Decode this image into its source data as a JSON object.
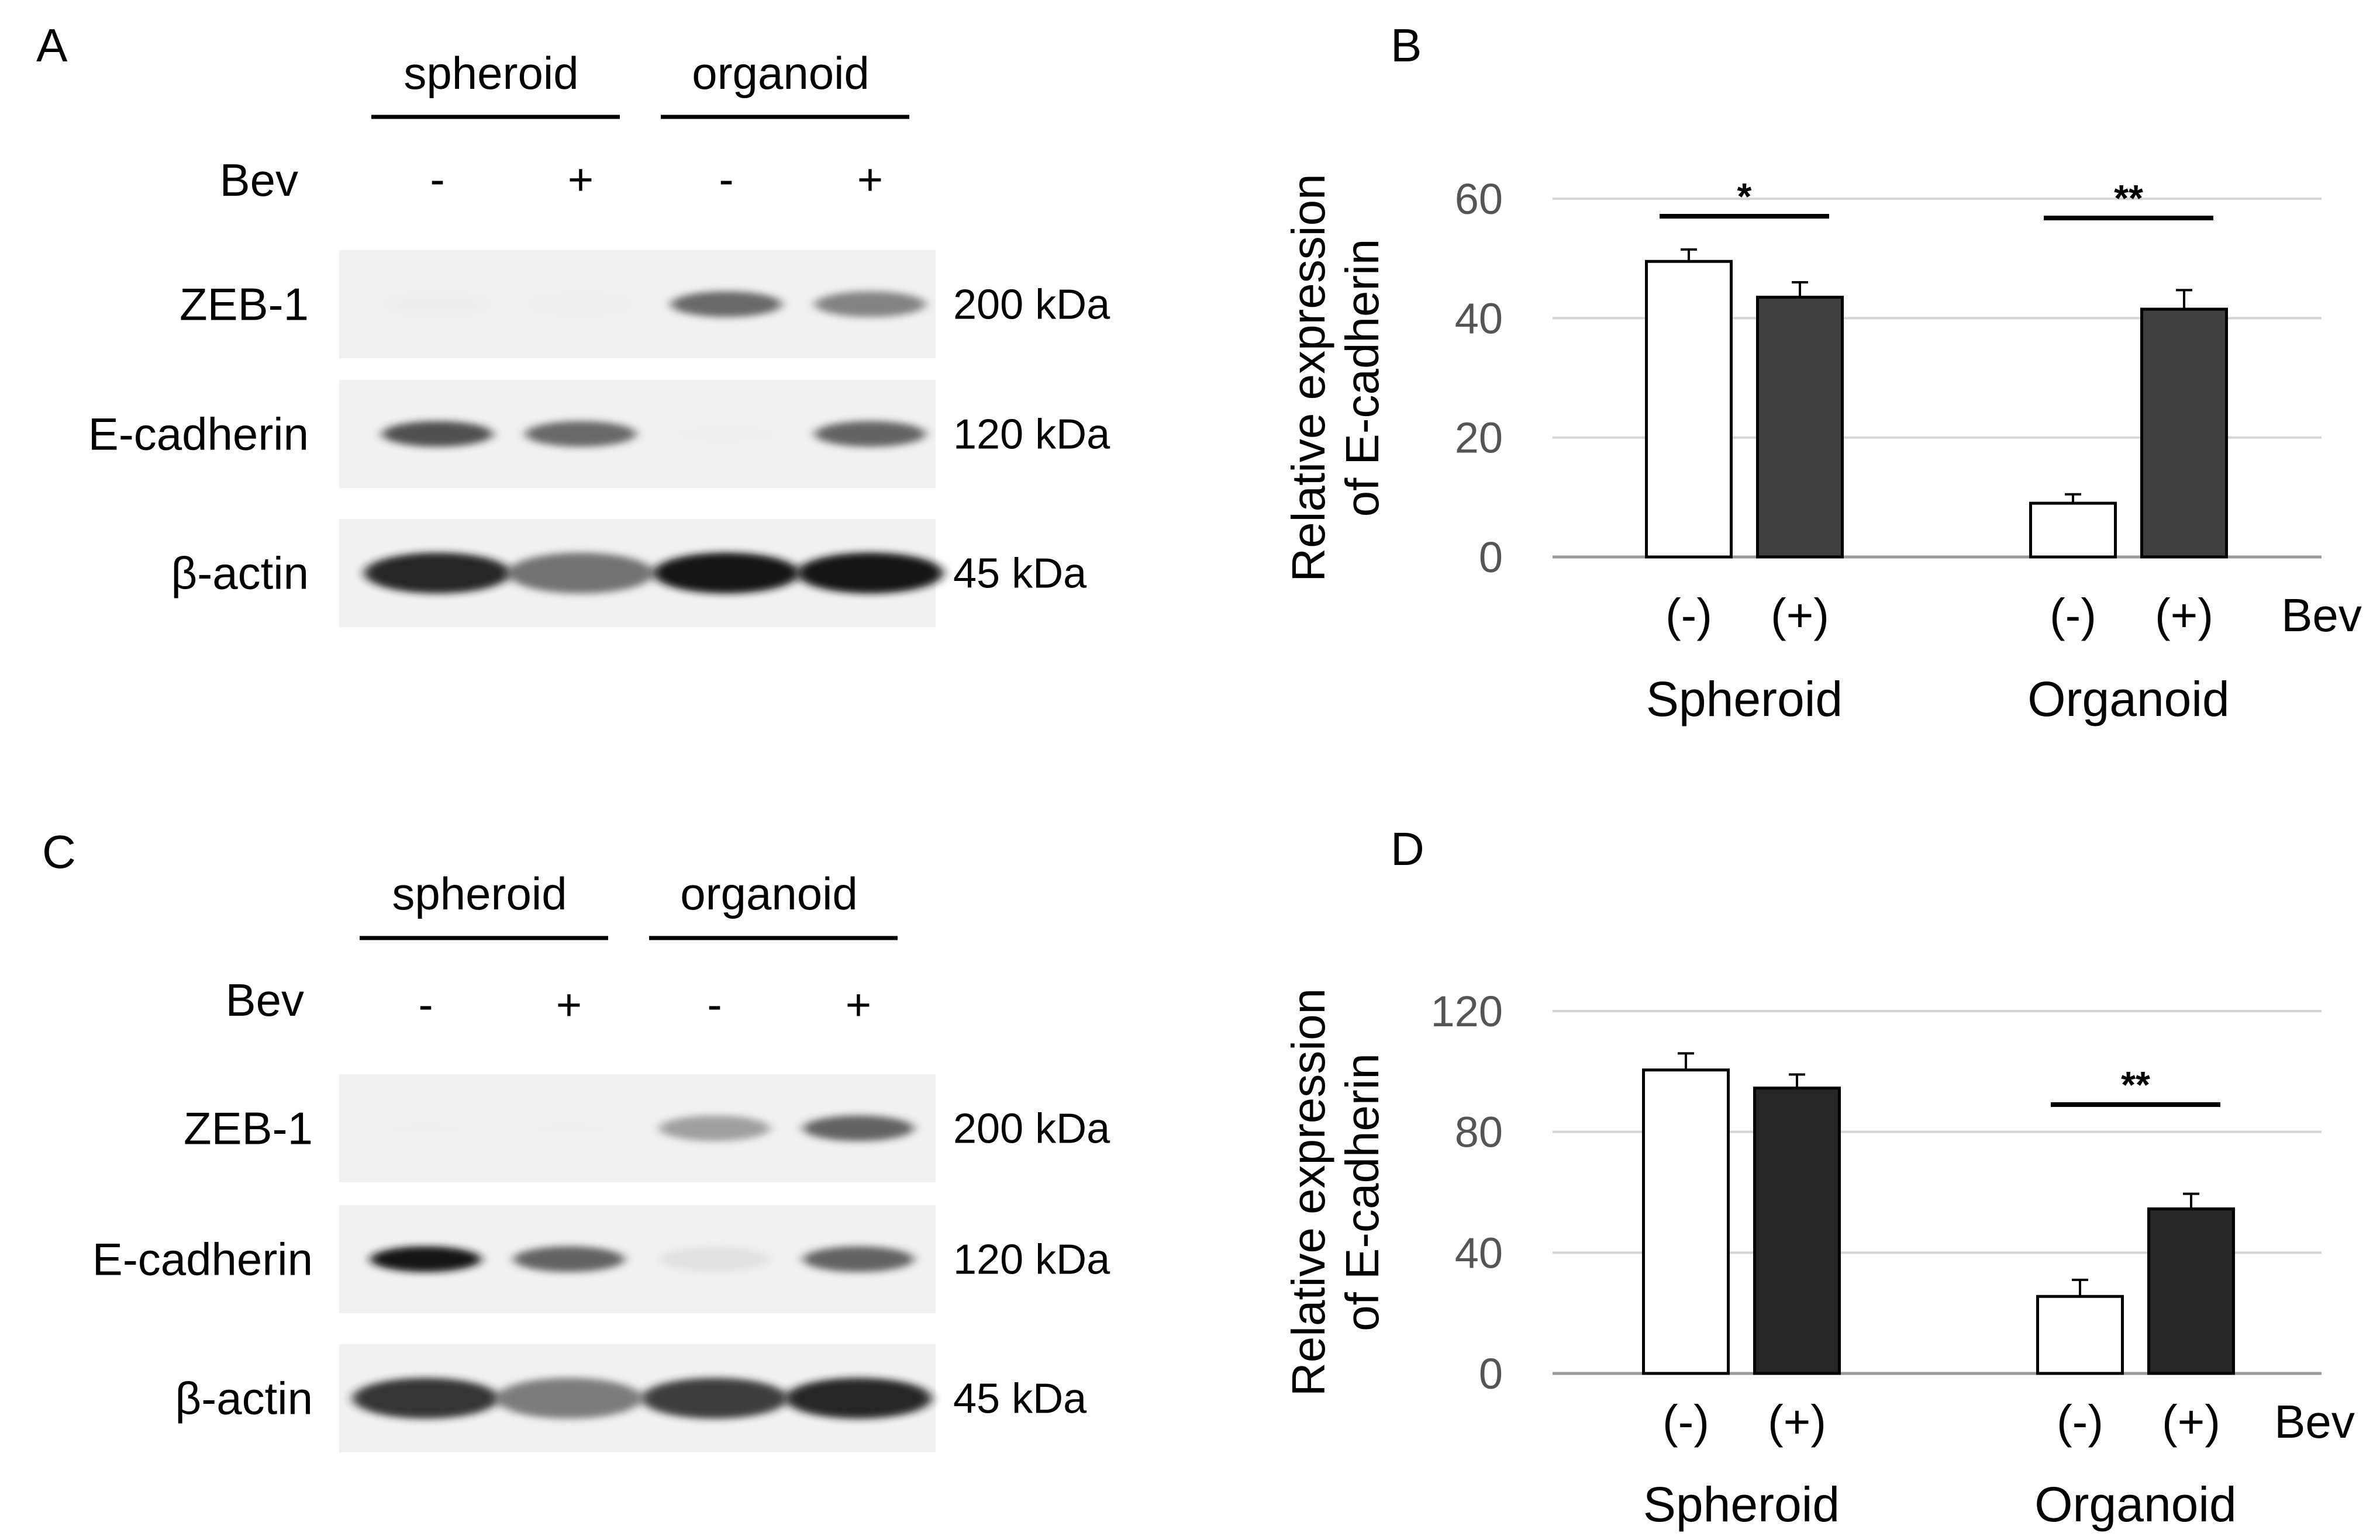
{
  "panels": {
    "A": {
      "letter": "A",
      "groups": [
        "spheroid",
        "organoid"
      ],
      "treatment_label": "Bev",
      "lane_signs": [
        "-",
        "+",
        "-",
        "+"
      ],
      "blots": [
        {
          "label": "ZEB-1",
          "size": "200 kDa",
          "intensity": [
            0.12,
            0.1,
            0.78,
            0.7
          ]
        },
        {
          "label": "E-cadherin",
          "size": "120 kDa",
          "intensity": [
            0.85,
            0.78,
            0.08,
            0.8
          ]
        },
        {
          "label": "β-actin",
          "size": "45 kDa",
          "intensity": [
            0.95,
            0.75,
            1.0,
            1.0
          ]
        }
      ]
    },
    "C": {
      "letter": "C",
      "groups": [
        "spheroid",
        "organoid"
      ],
      "treatment_label": "Bev",
      "lane_signs": [
        "-",
        "+",
        "-",
        "+"
      ],
      "blots": [
        {
          "label": "ZEB-1",
          "size": "200 kDa",
          "intensity": [
            0.04,
            0.04,
            0.6,
            0.8
          ]
        },
        {
          "label": "E-cadherin",
          "size": "120 kDa",
          "intensity": [
            1.0,
            0.8,
            0.25,
            0.8
          ]
        },
        {
          "label": "β-actin",
          "size": "45 kDa",
          "intensity": [
            0.92,
            0.72,
            0.9,
            0.95
          ]
        }
      ]
    }
  },
  "chart_data": [
    {
      "type": "bar",
      "panel": "B",
      "ylabel": [
        "Relative expression",
        "of E-cadherin"
      ],
      "ylim": [
        0,
        60
      ],
      "yticks": [
        0,
        20,
        40,
        60
      ],
      "grid": true,
      "groups": [
        "Spheroid",
        "Organoid"
      ],
      "categories": [
        "(-)",
        "(+)"
      ],
      "treatment_label": "Bev",
      "series": [
        {
          "values": [
            49.5,
            9.0
          ],
          "errors": [
            2.0,
            1.5
          ],
          "color": "#ffffff"
        },
        {
          "values": [
            43.5,
            41.5
          ],
          "errors": [
            2.5,
            3.2
          ],
          "color": "#404040"
        }
      ],
      "significance": [
        "*",
        "**"
      ]
    },
    {
      "type": "bar",
      "panel": "D",
      "ylabel": [
        "Relative expression",
        "of E-cadherin"
      ],
      "ylim": [
        0,
        120
      ],
      "yticks": [
        0,
        40,
        80,
        120
      ],
      "grid": true,
      "groups": [
        "Spheroid",
        "Organoid"
      ],
      "categories": [
        "(-)",
        "(+)"
      ],
      "treatment_label": "Bev",
      "series": [
        {
          "values": [
            100.5,
            25.5
          ],
          "errors": [
            5.5,
            5.5
          ],
          "color": "#ffffff"
        },
        {
          "values": [
            94.5,
            54.5
          ],
          "errors": [
            4.5,
            5.0
          ],
          "color": "#262626"
        }
      ],
      "significance": [
        "",
        "**"
      ]
    }
  ]
}
